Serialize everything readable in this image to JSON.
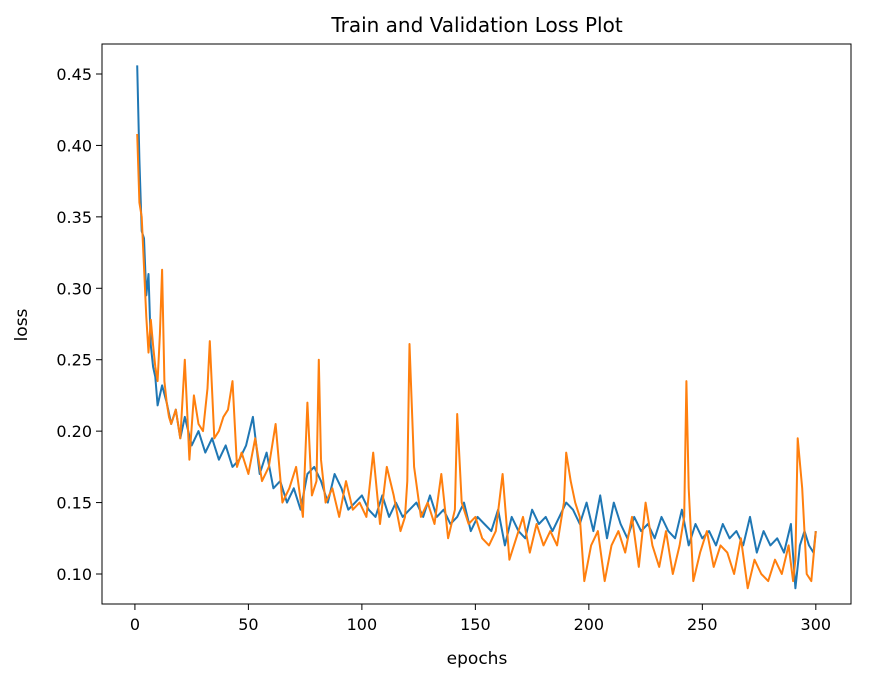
{
  "chart_data": {
    "type": "line",
    "title": "Train and Validation Loss Plot",
    "xlabel": "epochs",
    "ylabel": "loss",
    "xlim": [
      -14.5,
      315.5
    ],
    "ylim": [
      0.079,
      0.471
    ],
    "xticks": [
      0,
      50,
      100,
      150,
      200,
      250,
      300
    ],
    "xtick_labels": [
      "0",
      "50",
      "100",
      "150",
      "200",
      "250",
      "300"
    ],
    "yticks": [
      0.1,
      0.15,
      0.2,
      0.25,
      0.3,
      0.35,
      0.4,
      0.45
    ],
    "ytick_labels": [
      "0.10",
      "0.15",
      "0.20",
      "0.25",
      "0.30",
      "0.35",
      "0.40",
      "0.45"
    ],
    "grid": false,
    "legend": null,
    "series": [
      {
        "color": "#1f77b4",
        "x": [
          1,
          2,
          3,
          4,
          5,
          6,
          7,
          8,
          9,
          10,
          12,
          14,
          16,
          18,
          20,
          22,
          25,
          28,
          31,
          34,
          37,
          40,
          43,
          46,
          49,
          52,
          55,
          58,
          61,
          64,
          67,
          70,
          73,
          76,
          79,
          82,
          85,
          88,
          91,
          94,
          97,
          100,
          103,
          106,
          109,
          112,
          115,
          118,
          121,
          124,
          127,
          130,
          133,
          136,
          139,
          142,
          145,
          148,
          151,
          154,
          157,
          160,
          163,
          166,
          169,
          172,
          175,
          178,
          181,
          184,
          187,
          190,
          193,
          196,
          199,
          202,
          205,
          208,
          211,
          214,
          217,
          220,
          223,
          226,
          229,
          232,
          235,
          238,
          241,
          244,
          247,
          250,
          253,
          256,
          259,
          262,
          265,
          268,
          271,
          274,
          277,
          280,
          283,
          286,
          289,
          291,
          293,
          295,
          297,
          299,
          300
        ],
        "y": [
          0.456,
          0.39,
          0.34,
          0.335,
          0.295,
          0.31,
          0.26,
          0.245,
          0.238,
          0.218,
          0.232,
          0.22,
          0.205,
          0.215,
          0.195,
          0.21,
          0.19,
          0.2,
          0.185,
          0.195,
          0.18,
          0.19,
          0.175,
          0.18,
          0.19,
          0.21,
          0.17,
          0.185,
          0.16,
          0.165,
          0.15,
          0.16,
          0.145,
          0.17,
          0.175,
          0.165,
          0.15,
          0.17,
          0.16,
          0.145,
          0.15,
          0.155,
          0.145,
          0.14,
          0.155,
          0.14,
          0.15,
          0.14,
          0.145,
          0.15,
          0.14,
          0.155,
          0.14,
          0.145,
          0.135,
          0.14,
          0.15,
          0.13,
          0.14,
          0.135,
          0.13,
          0.145,
          0.12,
          0.14,
          0.13,
          0.125,
          0.145,
          0.135,
          0.14,
          0.13,
          0.14,
          0.15,
          0.145,
          0.135,
          0.15,
          0.13,
          0.155,
          0.125,
          0.15,
          0.135,
          0.125,
          0.14,
          0.13,
          0.135,
          0.125,
          0.14,
          0.13,
          0.125,
          0.145,
          0.12,
          0.135,
          0.125,
          0.13,
          0.12,
          0.135,
          0.125,
          0.13,
          0.12,
          0.14,
          0.115,
          0.13,
          0.12,
          0.125,
          0.115,
          0.135,
          0.09,
          0.12,
          0.13,
          0.12,
          0.115,
          0.13
        ]
      },
      {
        "color": "#ff7f0e",
        "x": [
          1,
          2,
          3,
          4,
          5,
          6,
          7,
          8,
          9,
          10,
          11,
          12,
          13,
          14,
          15,
          16,
          18,
          20,
          22,
          24,
          26,
          28,
          30,
          32,
          33,
          35,
          37,
          39,
          41,
          43,
          45,
          47,
          50,
          53,
          56,
          59,
          62,
          65,
          68,
          71,
          74,
          76,
          78,
          80,
          81,
          82,
          84,
          87,
          90,
          93,
          96,
          99,
          102,
          105,
          108,
          111,
          114,
          117,
          119,
          120,
          121,
          123,
          126,
          129,
          132,
          135,
          138,
          141,
          142,
          144,
          147,
          150,
          153,
          156,
          159,
          162,
          165,
          168,
          171,
          174,
          177,
          180,
          183,
          186,
          189,
          190,
          192,
          194,
          196,
          198,
          201,
          204,
          207,
          210,
          213,
          216,
          219,
          222,
          225,
          228,
          231,
          234,
          237,
          240,
          242,
          243,
          244,
          246,
          249,
          252,
          255,
          258,
          261,
          264,
          267,
          270,
          273,
          276,
          279,
          282,
          285,
          288,
          290,
          291,
          292,
          294,
          296,
          298,
          300
        ],
        "y": [
          0.408,
          0.36,
          0.35,
          0.315,
          0.28,
          0.255,
          0.278,
          0.26,
          0.245,
          0.235,
          0.268,
          0.313,
          0.235,
          0.22,
          0.21,
          0.205,
          0.215,
          0.195,
          0.25,
          0.18,
          0.225,
          0.205,
          0.2,
          0.23,
          0.263,
          0.195,
          0.2,
          0.21,
          0.215,
          0.235,
          0.175,
          0.185,
          0.17,
          0.195,
          0.165,
          0.175,
          0.205,
          0.15,
          0.16,
          0.175,
          0.14,
          0.22,
          0.155,
          0.165,
          0.25,
          0.18,
          0.15,
          0.16,
          0.14,
          0.165,
          0.145,
          0.15,
          0.14,
          0.185,
          0.135,
          0.175,
          0.155,
          0.13,
          0.14,
          0.165,
          0.261,
          0.175,
          0.14,
          0.15,
          0.135,
          0.17,
          0.125,
          0.145,
          0.212,
          0.15,
          0.135,
          0.14,
          0.125,
          0.12,
          0.13,
          0.17,
          0.11,
          0.125,
          0.14,
          0.115,
          0.135,
          0.12,
          0.13,
          0.12,
          0.15,
          0.185,
          0.165,
          0.15,
          0.14,
          0.095,
          0.12,
          0.13,
          0.095,
          0.12,
          0.13,
          0.115,
          0.14,
          0.105,
          0.15,
          0.12,
          0.105,
          0.13,
          0.1,
          0.12,
          0.14,
          0.235,
          0.16,
          0.095,
          0.115,
          0.13,
          0.105,
          0.12,
          0.115,
          0.1,
          0.125,
          0.09,
          0.11,
          0.1,
          0.095,
          0.11,
          0.1,
          0.12,
          0.095,
          0.11,
          0.195,
          0.16,
          0.1,
          0.095,
          0.13
        ]
      }
    ]
  }
}
